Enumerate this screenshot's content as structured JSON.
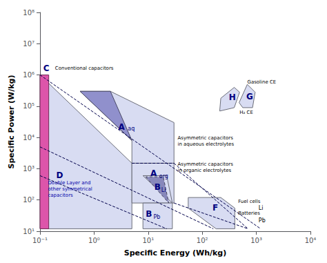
{
  "chart_data": {
    "type": "polygon",
    "xlabel": "Specific Energy (Wh/kg)",
    "ylabel": "Specific Power (W/kg)",
    "log": true,
    "grid": false,
    "xlim": [
      0.1,
      10000
    ],
    "ylim": [
      10,
      100000000
    ],
    "xticks": [
      {
        "value": 0.1,
        "label": "10⁻¹"
      },
      {
        "value": 1,
        "label": "10⁰"
      },
      {
        "value": 10,
        "label": "10¹"
      },
      {
        "value": 100,
        "label": "10²"
      },
      {
        "value": 1000,
        "label": "10³"
      },
      {
        "value": 10000,
        "label": "10⁴"
      }
    ],
    "yticks": [
      {
        "value": 10,
        "label": "10¹"
      },
      {
        "value": 100,
        "label": "10²"
      },
      {
        "value": 1000,
        "label": "10³"
      },
      {
        "value": 10000,
        "label": "10⁴"
      },
      {
        "value": 100000,
        "label": "10⁵"
      },
      {
        "value": 1000000,
        "label": "10⁶"
      },
      {
        "value": 10000000,
        "label": "10⁷"
      },
      {
        "value": 100000000,
        "label": "10⁸"
      }
    ],
    "series": [
      {
        "type": "polygon",
        "color": "#d8dcf2",
        "x": [
          0.1,
          5,
          5,
          0.1
        ],
        "values": [
          1000000,
          1500,
          12,
          12
        ]
      },
      {
        "type": "polygon",
        "color": "#d8dcf2",
        "x": [
          0.55,
          5,
          5,
          30,
          30,
          2.0
        ],
        "values": [
          300000,
          8000,
          1500,
          1500,
          30000,
          300000
        ]
      },
      {
        "type": "polygon",
        "color": "#d8dcf2",
        "x": [
          5,
          30,
          30,
          5
        ],
        "values": [
          1500,
          1500,
          80,
          80
        ]
      },
      {
        "type": "polygon",
        "color": "#d8dcf2",
        "x": [
          55,
          220,
          400,
          400,
          180,
          55
        ],
        "values": [
          120,
          120,
          55,
          12,
          12,
          55
        ]
      },
      {
        "type": "polygon",
        "color": "#d8dcf2",
        "x": [
          480,
          680,
          950,
          850,
          560
        ],
        "values": [
          130000,
          500000,
          280000,
          90000,
          90000
        ]
      },
      {
        "type": "polygon",
        "color": "#d8dcf2",
        "x": [
          210,
          390,
          490,
          390,
          220
        ],
        "values": [
          70000,
          90000,
          280000,
          400000,
          180000
        ]
      },
      {
        "type": "polygon",
        "color": "#d8dcf2",
        "x": [
          8,
          28,
          28,
          8
        ],
        "values": [
          80,
          80,
          12,
          12
        ]
      },
      {
        "type": "polygon",
        "color": "#d8dcf2",
        "x": [
          8,
          28,
          22,
          8
        ],
        "values": [
          600,
          80,
          600,
          600
        ]
      },
      {
        "type": "polygon",
        "color": "#9090cc",
        "x": [
          0.55,
          5,
          2.0
        ],
        "values": [
          300000,
          8000,
          300000
        ]
      },
      {
        "type": "polygon",
        "color": "#8888bb",
        "line_style": "dashed",
        "x": [
          9,
          24,
          19,
          9
        ],
        "values": [
          550,
          80,
          550,
          550
        ]
      },
      {
        "type": "polygon",
        "color": "#dd55aa",
        "x": [
          0.1,
          0.145,
          0.145,
          0.1
        ],
        "values": [
          1000000,
          1000000,
          12,
          12
        ]
      },
      {
        "type": "line",
        "color": "#00004a",
        "line_style": "dashed",
        "x": [
          0.1,
          1200
        ],
        "values": [
          1000000,
          12
        ]
      },
      {
        "type": "line",
        "color": "#00004a",
        "line_style": "dashed",
        "x": [
          0.1,
          160
        ],
        "values": [
          5000,
          12
        ]
      },
      {
        "type": "line",
        "color": "#00004a",
        "line_style": "dashed",
        "x": [
          0.1,
          22
        ],
        "values": [
          600,
          12
        ]
      },
      {
        "type": "line",
        "color": "#00004a",
        "line_style": "dashed",
        "x": [
          5,
          30
        ],
        "values": [
          1500,
          1500
        ]
      },
      {
        "type": "line",
        "color": "#00004a",
        "line_style": "dashed",
        "x": [
          30,
          700
        ],
        "values": [
          1500,
          12
        ]
      },
      {
        "type": "line",
        "color": "#00004a",
        "line_style": "dashed",
        "x": [
          30,
          700
        ],
        "values": [
          80,
          12
        ]
      }
    ],
    "annotations": [
      {
        "text": "C",
        "x": 0.115,
        "y": 1600000,
        "color": "#000080"
      },
      {
        "text": "Conventional capacitors",
        "x": 0.19,
        "y": 1600000,
        "color": "#000000"
      },
      {
        "text": "D",
        "x": 0.2,
        "y": 600,
        "color": "#000080"
      },
      {
        "text": "Double Layer and\nother symmetrical\ncapacitors",
        "x": 0.14,
        "y": 220,
        "color": "#0000aa"
      },
      {
        "text": "A",
        "x": 2.8,
        "y": 22000,
        "color": "#000080"
      },
      {
        "text": "aq",
        "x": 4.2,
        "y": 19000,
        "color": "#000080"
      },
      {
        "text": "A",
        "x": 11,
        "y": 700,
        "color": "#000080"
      },
      {
        "text": "org",
        "x": 16,
        "y": 580,
        "color": "#000080"
      },
      {
        "text": "B",
        "x": 13,
        "y": 260,
        "color": "#000080"
      },
      {
        "text": "Li",
        "x": 17.5,
        "y": 210,
        "color": "#000080"
      },
      {
        "text": "B",
        "x": 9,
        "y": 35,
        "color": "#000080"
      },
      {
        "text": "Pb",
        "x": 12.5,
        "y": 28,
        "color": "#000080"
      },
      {
        "text": "F",
        "x": 155,
        "y": 55,
        "color": "#000080"
      },
      {
        "text": "G",
        "x": 650,
        "y": 200000,
        "color": "#000080"
      },
      {
        "text": "H",
        "x": 310,
        "y": 190000,
        "color": "#000080"
      },
      {
        "text": "Asymmetric capacitors\nin aqueous electrolytes",
        "x": 35,
        "y": 7500,
        "color": "#000000"
      },
      {
        "text": "Asymmetric capacitors\nin organic electrolytes",
        "x": 35,
        "y": 1100,
        "color": "#000000"
      },
      {
        "text": "Fuel cells",
        "x": 460,
        "y": 90,
        "color": "#000000"
      },
      {
        "text": "Batteries",
        "x": 460,
        "y": 38,
        "color": "#000000"
      },
      {
        "text": "Li",
        "x": 1100,
        "y": 55,
        "color": "#000000"
      },
      {
        "text": "Pb",
        "x": 1100,
        "y": 22,
        "color": "#000000"
      },
      {
        "text": "Gasoline CE",
        "x": 680,
        "y": 600000,
        "color": "#000000"
      },
      {
        "text": "H₂ CE",
        "x": 490,
        "y": 62000,
        "color": "#000000"
      }
    ]
  }
}
